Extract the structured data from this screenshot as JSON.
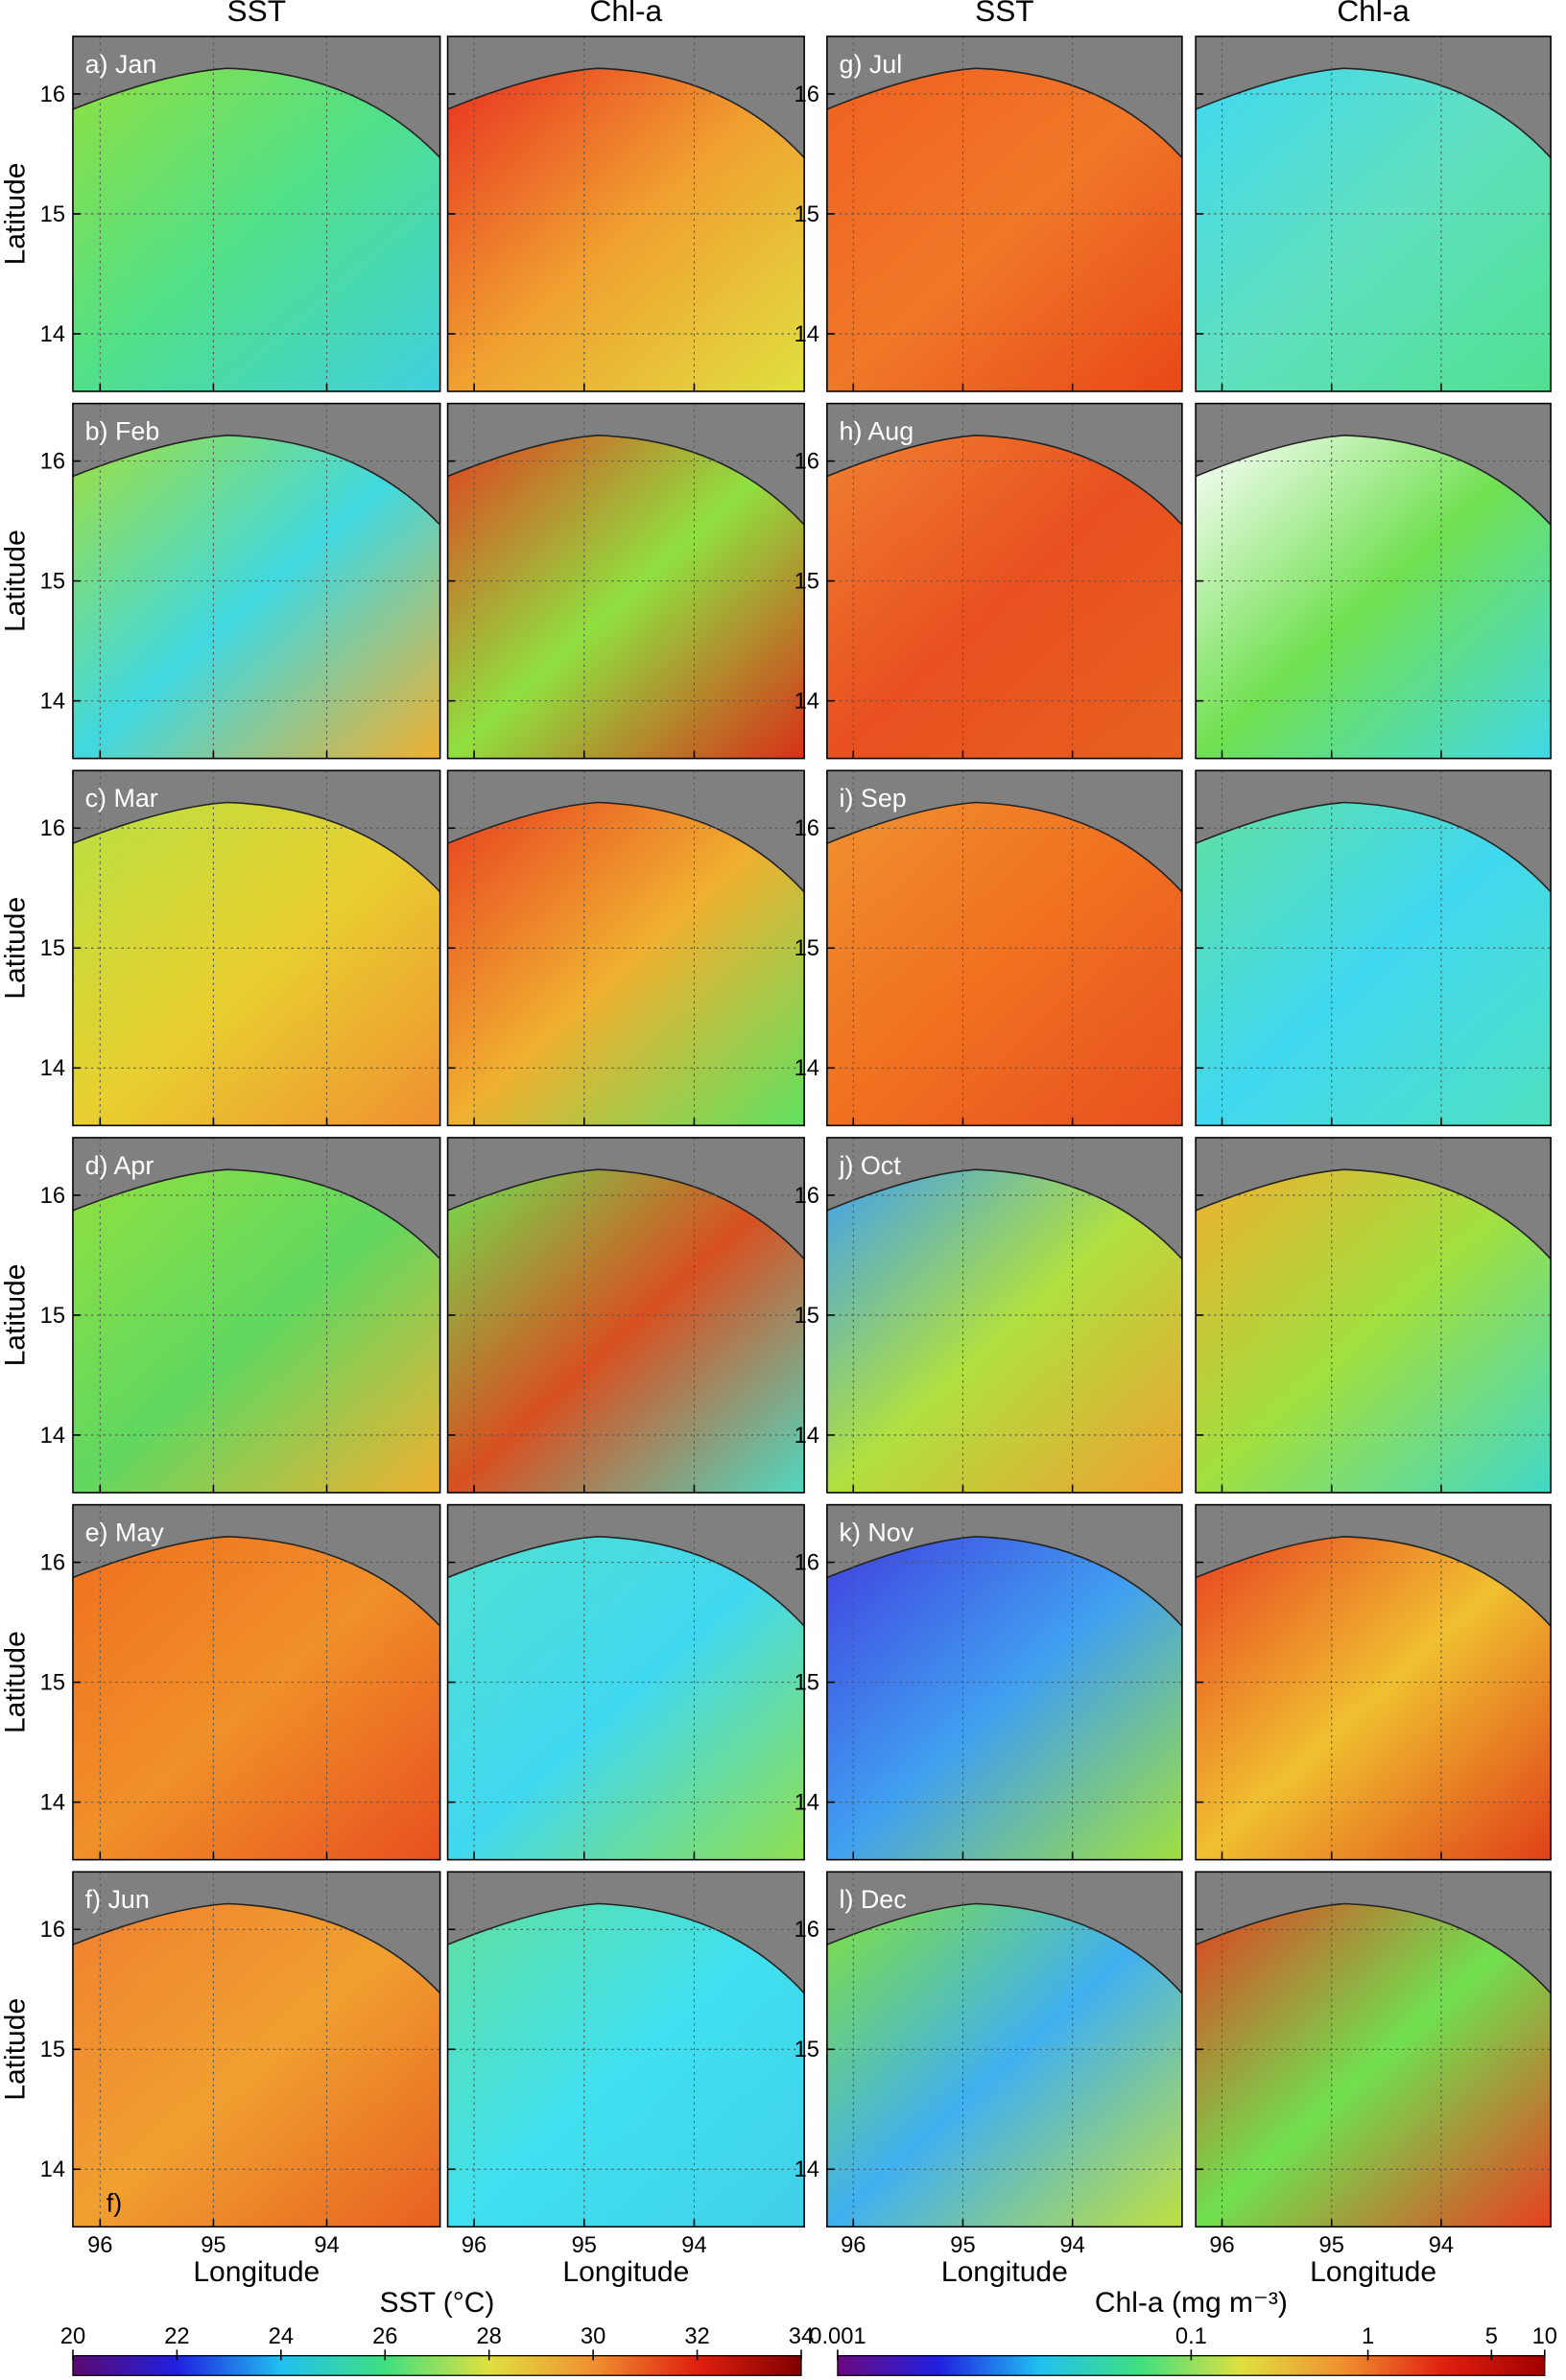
{
  "column_headers": [
    "SST",
    "Chl-a",
    "SST",
    "Chl-a"
  ],
  "y_axis_label": "Latitude",
  "x_axis_label": "Longitude",
  "lat_lim": [
    13.52,
    16.48
  ],
  "lat_ticks": [
    16,
    15,
    14
  ],
  "lon_lim": [
    96.24,
    93.0
  ],
  "lon_ticks": [
    96,
    95,
    94
  ],
  "land_color": "#808080",
  "months": [
    {
      "label": "a) Jan",
      "sst_colors": [
        "#8ee040",
        "#50e08a",
        "#40d0e0"
      ],
      "chl_colors": [
        "#e83020",
        "#f0a030",
        "#e0e040"
      ]
    },
    {
      "label": "b) Feb",
      "sst_colors": [
        "#a0e040",
        "#40d8e0",
        "#f0b030"
      ],
      "chl_colors": [
        "#e04020",
        "#90e040",
        "#d83018"
      ]
    },
    {
      "label": "c) Mar",
      "sst_colors": [
        "#b8e040",
        "#e8d030",
        "#f09030"
      ],
      "chl_colors": [
        "#e84020",
        "#f0b030",
        "#60e060"
      ]
    },
    {
      "label": "d) Apr",
      "sst_colors": [
        "#90e040",
        "#60d860",
        "#f0b030"
      ],
      "chl_colors": [
        "#70e050",
        "#d85020",
        "#50d8c0"
      ]
    },
    {
      "label": "e) May",
      "sst_colors": [
        "#f07020",
        "#f09028",
        "#e85020"
      ],
      "chl_colors": [
        "#50e0d0",
        "#40d8f0",
        "#90e050"
      ]
    },
    {
      "label": "f) Jun",
      "note": "f)",
      "sst_colors": [
        "#f08030",
        "#f0a030",
        "#e86020"
      ],
      "chl_colors": [
        "#60e0a0",
        "#40e0f0",
        "#40d0e8"
      ]
    },
    {
      "label": "g) Jul",
      "sst_colors": [
        "#f06020",
        "#f07828",
        "#e84818"
      ],
      "chl_colors": [
        "#40d8f0",
        "#60e0c0",
        "#50e090"
      ]
    },
    {
      "label": "h) Aug",
      "sst_colors": [
        "#f08030",
        "#e85020",
        "#e86020"
      ],
      "chl_colors": [
        "#ffffff",
        "#70e050",
        "#40d8e8"
      ]
    },
    {
      "label": "i) Sep",
      "sst_colors": [
        "#f09030",
        "#f07020",
        "#e85020"
      ],
      "chl_colors": [
        "#60e0a0",
        "#40d8f0",
        "#50e0c0"
      ]
    },
    {
      "label": "j) Oct",
      "sst_colors": [
        "#40a0f0",
        "#b0e040",
        "#f0a030"
      ],
      "chl_colors": [
        "#f0b030",
        "#a0e040",
        "#40d8c8"
      ]
    },
    {
      "label": "k) Nov",
      "sst_colors": [
        "#4040e0",
        "#40a0f0",
        "#a0e040"
      ],
      "chl_colors": [
        "#e84020",
        "#f0c030",
        "#e04018"
      ]
    },
    {
      "label": "l) Dec",
      "sst_colors": [
        "#80e040",
        "#40b0f0",
        "#c0e040"
      ],
      "chl_colors": [
        "#e04020",
        "#70e050",
        "#e84020"
      ]
    }
  ],
  "colorbars": [
    {
      "title": "SST (°C)",
      "lim": [
        20,
        34
      ],
      "ticks": [
        20,
        22,
        24,
        26,
        28,
        30,
        32,
        34
      ],
      "log": false,
      "colors": [
        "#5a0a70",
        "#2020e0",
        "#20c0f0",
        "#40e080",
        "#e0e040",
        "#f09030",
        "#e02010",
        "#800000"
      ]
    },
    {
      "title": "Chl-a (mg m⁻³)",
      "lim": [
        0.001,
        10
      ],
      "ticks": [
        0.001,
        0.1,
        1,
        5,
        10
      ],
      "log": true,
      "colors": [
        "#6a0a80",
        "#2020e0",
        "#20c0f0",
        "#40e080",
        "#e0e040",
        "#f09030",
        "#e02010",
        "#a00000"
      ]
    }
  ]
}
